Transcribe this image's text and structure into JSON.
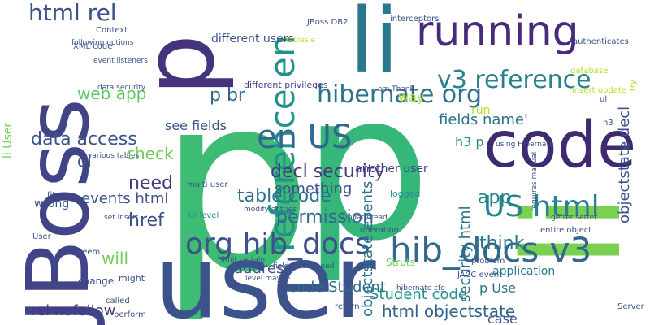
{
  "words": [
    "p",
    "p",
    "user",
    "JBoss",
    "li",
    "p",
    "li",
    "code",
    "running",
    "v3 reference",
    "hibernate org",
    "reference en",
    "en US",
    "org hib_docs",
    "hib_docs v3",
    "US html",
    "html rel",
    "see fields",
    "p br",
    "decl security",
    "table code",
    "permission",
    "fields name'",
    "data access",
    "check",
    "need",
    "events html",
    "href",
    "web app",
    "app",
    "think",
    "code Student",
    "Student code",
    "html objectstate",
    "objectstate events",
    "security html",
    "objectstate decl",
    "rel nofollow",
    "will",
    "address'",
    "something",
    "way",
    "h3 p",
    "another user",
    "p Use",
    "application",
    "case",
    "ol",
    "wrong",
    "different users",
    "different privileges",
    "multi user",
    "UI level",
    "logged",
    "fit",
    "might",
    "seem",
    "change",
    "called",
    "perform",
    "run",
    "JBoss DB2",
    "interceptors",
    "tables e",
    "XML code",
    "Context",
    "following options",
    "event listeners",
    "data security",
    "set insert",
    "various tables",
    "modify entries",
    "operation",
    "limit certain",
    "JACC event",
    "Struts",
    "implement",
    "hibernate cfg",
    "return",
    "problem",
    "User",
    "li User",
    "em Thank",
    "database",
    "insert update",
    "authenticates",
    "h3",
    "ul",
    "try",
    "update read",
    "getter setter",
    "entire object",
    "Server",
    "fields mentioned",
    "level maybe",
    "requires manual",
    "using Hibernate"
  ]
}
